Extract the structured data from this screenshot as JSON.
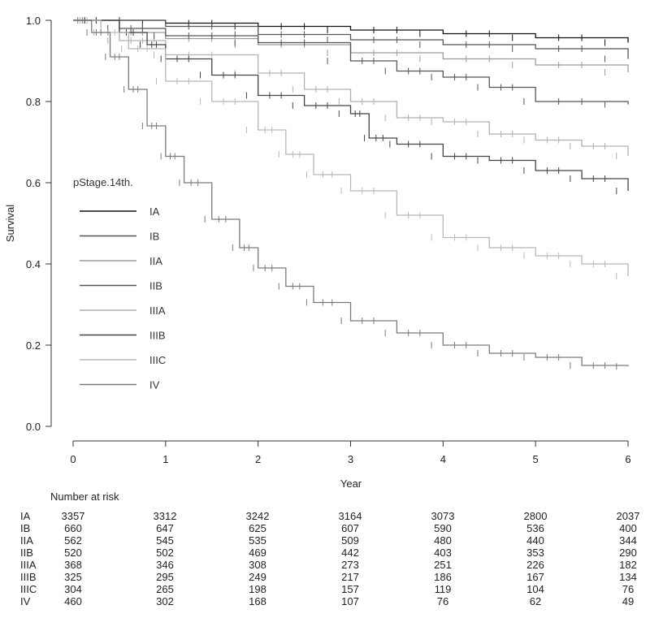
{
  "chart_data": {
    "type": "line",
    "subtype": "kaplan-meier",
    "xlabel": "Year",
    "ylabel": "Survival",
    "xlim": [
      0,
      6
    ],
    "ylim": [
      0,
      1
    ],
    "xticks": [
      "0",
      "1",
      "2",
      "3",
      "4",
      "5",
      "6"
    ],
    "yticks": [
      "0.0",
      "0.2",
      "0.4",
      "0.6",
      "0.8",
      "1.0"
    ],
    "grid": false,
    "legend": {
      "title": "pStage.14th.",
      "position": "middle-left"
    },
    "series": [
      {
        "name": "IA",
        "color": "#111111",
        "x": [
          0,
          1,
          2,
          3,
          4,
          5,
          6
        ],
        "y": [
          1.0,
          0.993,
          0.985,
          0.976,
          0.967,
          0.957,
          0.945
        ]
      },
      {
        "name": "IB",
        "color": "#555555",
        "x": [
          0,
          1,
          2,
          3,
          4,
          5,
          6
        ],
        "y": [
          1.0,
          0.985,
          0.965,
          0.952,
          0.94,
          0.93,
          0.905
        ]
      },
      {
        "name": "IIA",
        "color": "#9a9a9a",
        "x": [
          0,
          0.5,
          1,
          2,
          3,
          4,
          5,
          6
        ],
        "y": [
          1.0,
          0.97,
          0.955,
          0.94,
          0.92,
          0.905,
          0.89,
          0.872
        ]
      },
      {
        "name": "IIB",
        "color": "#555555",
        "x": [
          0,
          0.5,
          1,
          2,
          3,
          3.5,
          4,
          4.5,
          5,
          6
        ],
        "y": [
          1.0,
          0.98,
          0.962,
          0.945,
          0.9,
          0.875,
          0.86,
          0.835,
          0.8,
          0.793
        ]
      },
      {
        "name": "IIIA",
        "color": "#b0b0b0",
        "x": [
          0,
          0.5,
          1,
          2,
          2.5,
          3,
          3.5,
          4,
          4.5,
          5,
          5.5,
          6
        ],
        "y": [
          1.0,
          0.95,
          0.915,
          0.87,
          0.83,
          0.8,
          0.76,
          0.75,
          0.72,
          0.705,
          0.69,
          0.666
        ]
      },
      {
        "name": "IIIB",
        "color": "#444444",
        "x": [
          0,
          0.5,
          0.8,
          1,
          1.5,
          2,
          2.5,
          3,
          3.2,
          3.5,
          4,
          4.5,
          5,
          5.5,
          6
        ],
        "y": [
          1.0,
          0.97,
          0.94,
          0.905,
          0.865,
          0.815,
          0.79,
          0.77,
          0.71,
          0.695,
          0.665,
          0.655,
          0.63,
          0.61,
          0.58
        ]
      },
      {
        "name": "IIIC",
        "color": "#b8b8b8",
        "x": [
          0,
          0.3,
          0.6,
          1,
          1.5,
          2,
          2.3,
          2.6,
          3,
          3.5,
          4,
          4.5,
          5,
          5.5,
          6
        ],
        "y": [
          1.0,
          0.97,
          0.93,
          0.85,
          0.8,
          0.73,
          0.67,
          0.62,
          0.58,
          0.52,
          0.465,
          0.44,
          0.42,
          0.4,
          0.37
        ]
      },
      {
        "name": "IV",
        "color": "#7a7a7a",
        "x": [
          0,
          0.2,
          0.4,
          0.6,
          0.8,
          1,
          1.2,
          1.5,
          1.8,
          2,
          2.3,
          2.6,
          3,
          3.5,
          4,
          4.5,
          5,
          5.5,
          6
        ],
        "y": [
          1.0,
          0.97,
          0.91,
          0.83,
          0.74,
          0.665,
          0.6,
          0.51,
          0.44,
          0.39,
          0.345,
          0.305,
          0.26,
          0.23,
          0.2,
          0.18,
          0.17,
          0.15,
          0.148
        ]
      }
    ]
  },
  "risk_table": {
    "title": "Number at risk",
    "rows": [
      {
        "label": "IA",
        "values": [
          "3357",
          "3312",
          "3242",
          "3164",
          "3073",
          "2800",
          "2037"
        ]
      },
      {
        "label": "IB",
        "values": [
          "660",
          "647",
          "625",
          "607",
          "590",
          "536",
          "400"
        ]
      },
      {
        "label": "IIA",
        "values": [
          "562",
          "545",
          "535",
          "509",
          "480",
          "440",
          "344"
        ]
      },
      {
        "label": "IIB",
        "values": [
          "520",
          "502",
          "469",
          "442",
          "403",
          "353",
          "290"
        ]
      },
      {
        "label": "IIIA",
        "values": [
          "368",
          "346",
          "308",
          "273",
          "251",
          "226",
          "182"
        ]
      },
      {
        "label": "IIIB",
        "values": [
          "325",
          "295",
          "249",
          "217",
          "186",
          "167",
          "134"
        ]
      },
      {
        "label": "IIIC",
        "values": [
          "304",
          "265",
          "198",
          "157",
          "119",
          "104",
          "76"
        ]
      },
      {
        "label": "IV",
        "values": [
          "460",
          "302",
          "168",
          "107",
          "76",
          "62",
          "49"
        ]
      }
    ]
  }
}
